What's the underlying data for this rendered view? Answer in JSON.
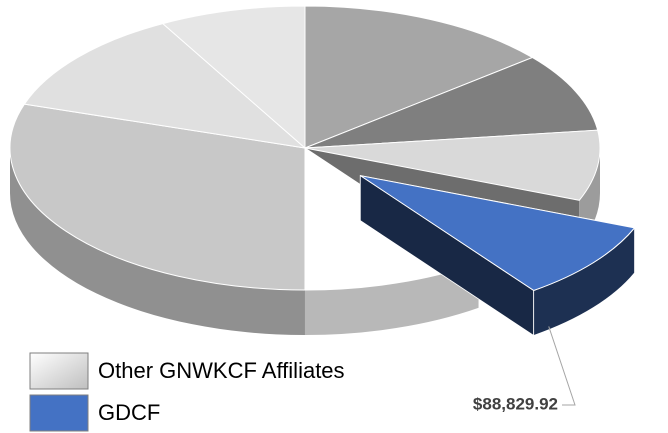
{
  "chart_data": {
    "type": "pie",
    "values": [
      138200,
      88800,
      79000,
      88829.92,
      98700,
      296100,
      118400,
      79000
    ],
    "value_labels": [
      null,
      null,
      null,
      "$88,829.92",
      null,
      null,
      null,
      null
    ],
    "colors": [
      "#a6a6a6",
      "#7f7f7f",
      "#d9d9d9",
      "#4472c4",
      "#ffffff",
      "#c8c8c8",
      "#e0e0e0",
      "#e6e6e6"
    ],
    "exploded": 3,
    "legend": [
      {
        "label": "Other GNWKCF Affiliates",
        "color": "#d9d9d9"
      },
      {
        "label": "GDCF",
        "color": "#4472c4"
      }
    ]
  }
}
